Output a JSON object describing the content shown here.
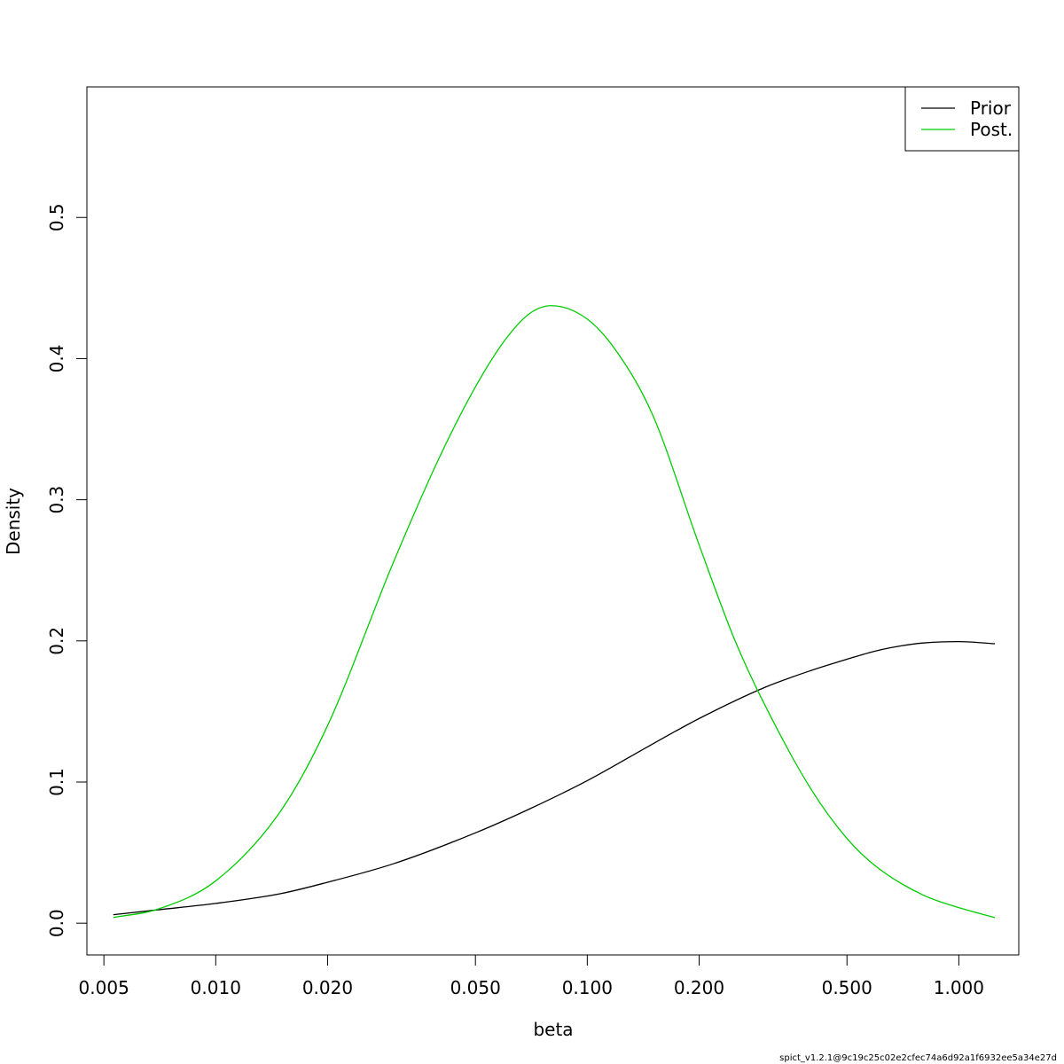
{
  "chart_data": {
    "type": "line",
    "title": "",
    "xlabel": "beta",
    "ylabel": "Density",
    "x_scale": "log",
    "xlim": [
      0.0045,
      1.45
    ],
    "ylim": [
      -0.0225,
      0.5925
    ],
    "x_ticks": [
      0.005,
      0.01,
      0.02,
      0.05,
      0.1,
      0.2,
      0.5,
      1.0
    ],
    "x_tick_labels": [
      "0.005",
      "0.010",
      "0.020",
      "0.050",
      "0.100",
      "0.200",
      "0.500",
      "1.000"
    ],
    "y_ticks": [
      0.0,
      0.1,
      0.2,
      0.3,
      0.4,
      0.5
    ],
    "y_tick_labels": [
      "0.0",
      "0.1",
      "0.2",
      "0.3",
      "0.4",
      "0.5"
    ],
    "grid": false,
    "legend_position": "top-right",
    "series": [
      {
        "name": "Prior",
        "color": "#000000",
        "x": [
          0.0053,
          0.007,
          0.01,
          0.015,
          0.02,
          0.03,
          0.05,
          0.07,
          0.1,
          0.15,
          0.2,
          0.3,
          0.4,
          0.5,
          0.6,
          0.7,
          0.8,
          1.0,
          1.25
        ],
        "y": [
          0.006,
          0.0095,
          0.014,
          0.021,
          0.029,
          0.042,
          0.064,
          0.081,
          0.101,
          0.127,
          0.145,
          0.167,
          0.179,
          0.187,
          0.193,
          0.1965,
          0.1985,
          0.1995,
          0.198
        ]
      },
      {
        "name": "Post.",
        "color": "#00cc00",
        "x": [
          0.0053,
          0.007,
          0.01,
          0.015,
          0.02,
          0.03,
          0.04,
          0.05,
          0.06,
          0.07,
          0.08,
          0.1,
          0.12,
          0.15,
          0.2,
          0.25,
          0.3,
          0.4,
          0.5,
          0.6,
          0.8,
          1.0,
          1.25
        ],
        "y": [
          0.004,
          0.01,
          0.03,
          0.08,
          0.14,
          0.255,
          0.33,
          0.38,
          0.413,
          0.432,
          0.4375,
          0.428,
          0.405,
          0.36,
          0.268,
          0.2,
          0.155,
          0.095,
          0.06,
          0.04,
          0.02,
          0.011,
          0.004
        ]
      }
    ]
  },
  "footer": {
    "note": "spict_v1.2.1@9c19c25c02e2cfec74a6d92a1f6932ee5a34e27d"
  }
}
